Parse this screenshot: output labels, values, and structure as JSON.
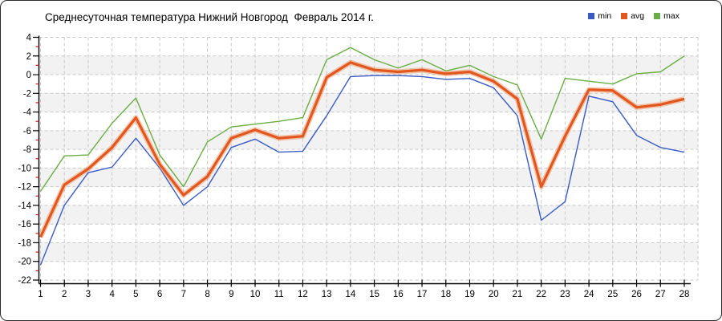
{
  "title": "Среднесуточная температура Нижний Новгород  Февраль 2014 г.",
  "chart_data": {
    "type": "line",
    "title": "Среднесуточная температура Нижний Новгород  Февраль 2014 г.",
    "x": [
      1,
      2,
      3,
      4,
      5,
      6,
      7,
      8,
      9,
      10,
      11,
      12,
      13,
      14,
      15,
      16,
      17,
      18,
      19,
      20,
      21,
      22,
      23,
      24,
      25,
      26,
      27,
      28
    ],
    "x_tick_labels": [
      "1",
      "2",
      "3",
      "4",
      "5",
      "6",
      "7",
      "8",
      "9",
      "10",
      "11",
      "12",
      "13",
      "14",
      "15",
      "16",
      "17",
      "18",
      "19",
      "20",
      "21",
      "22",
      "23",
      "24",
      "25",
      "26",
      "27",
      "28"
    ],
    "y_ticks": [
      4,
      2,
      0,
      -2,
      -4,
      -6,
      -8,
      -10,
      -12,
      -14,
      -16,
      -18,
      -20,
      -22
    ],
    "y_axis": {
      "max": 4,
      "min": -22,
      "major_step": 2,
      "minor_step": 1
    },
    "grid": "dashed",
    "legend_position": "top-right",
    "series": [
      {
        "name": "min",
        "color": "#3a5bc7",
        "line_width": 1.4,
        "values": [
          -20.4,
          -14.0,
          -10.5,
          -9.9,
          -6.8,
          -10.0,
          -14.0,
          -12.0,
          -7.8,
          -6.9,
          -8.3,
          -8.2,
          -4.4,
          -0.2,
          -0.1,
          -0.1,
          -0.2,
          -0.5,
          -0.4,
          -1.4,
          -4.4,
          -15.6,
          -13.6,
          -2.3,
          -2.9,
          -6.5,
          -7.8,
          -8.3
        ]
      },
      {
        "name": "avg",
        "color": "#e2571f",
        "halo_color": "rgba(238,140,80,0.45)",
        "line_width": 3.2,
        "values": [
          -17.4,
          -11.8,
          -10.1,
          -7.8,
          -4.6,
          -9.6,
          -12.9,
          -10.9,
          -6.8,
          -5.9,
          -6.8,
          -6.6,
          -0.3,
          1.3,
          0.5,
          0.3,
          0.5,
          0.1,
          0.3,
          -0.7,
          -2.6,
          -12.0,
          -6.6,
          -1.6,
          -1.7,
          -3.5,
          -3.2,
          -2.6
        ]
      },
      {
        "name": "max",
        "color": "#6aad43",
        "line_width": 1.4,
        "values": [
          -12.5,
          -8.7,
          -8.6,
          -5.2,
          -2.5,
          -8.6,
          -12.0,
          -7.2,
          -5.6,
          -5.3,
          -5.0,
          -4.6,
          1.6,
          2.9,
          1.6,
          0.7,
          1.6,
          0.4,
          1.0,
          -0.2,
          -1.1,
          -6.9,
          -0.4,
          -0.7,
          -1.0,
          0.1,
          0.3,
          2.0
        ]
      }
    ],
    "colors": {
      "grid_line": "#c9c9c9",
      "band_fill": "#f2f2f2",
      "axis": "#000000",
      "minor_tick": "#cc2222",
      "text": "#000000"
    }
  }
}
